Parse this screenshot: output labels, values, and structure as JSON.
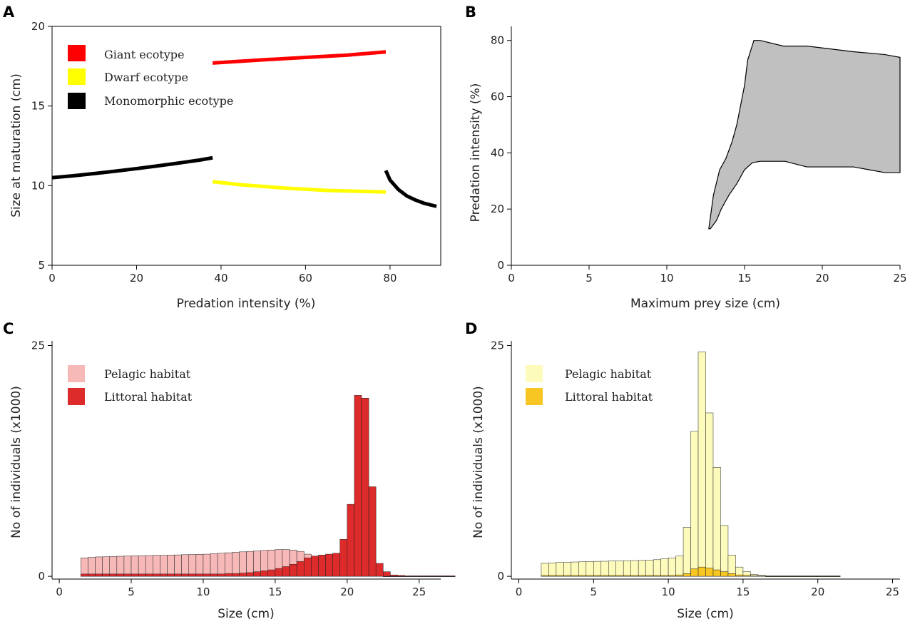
{
  "chart_data": [
    {
      "panel": "A",
      "type": "line",
      "xlabel": "Predation intensity (%)",
      "ylabel": "Size at maturation (cm)",
      "xlim": [
        0,
        92
      ],
      "ylim": [
        5,
        20
      ],
      "xticks": [
        0,
        20,
        40,
        60,
        80
      ],
      "yticks": [
        5,
        10,
        15,
        20
      ],
      "legend_position": "top-left",
      "series": [
        {
          "name": "Giant ecotype",
          "color": "#ff0000",
          "x": [
            38,
            50,
            60,
            70,
            79
          ],
          "y": [
            17.7,
            17.9,
            18.05,
            18.2,
            18.4
          ]
        },
        {
          "name": "Dwarf ecotype",
          "color": "#ffff00",
          "x": [
            38,
            45,
            55,
            65,
            79
          ],
          "y": [
            10.25,
            10.05,
            9.85,
            9.7,
            9.6
          ]
        },
        {
          "name": "Monomorphic ecotype",
          "color": "#000000",
          "segments": [
            {
              "x": [
                0,
                5,
                10,
                15,
                20,
                25,
                30,
                35,
                38
              ],
              "y": [
                10.5,
                10.62,
                10.76,
                10.91,
                11.07,
                11.24,
                11.42,
                11.61,
                11.75
              ]
            },
            {
              "x": [
                79,
                80,
                82,
                84,
                86,
                88,
                91
              ],
              "y": [
                10.95,
                10.35,
                9.75,
                9.35,
                9.1,
                8.9,
                8.7
              ]
            }
          ]
        }
      ]
    },
    {
      "panel": "B",
      "type": "area",
      "xlabel": "Maximum prey size (cm)",
      "ylabel": "Predation intensity (%)",
      "xlim": [
        0,
        25
      ],
      "ylim": [
        0,
        85
      ],
      "xticks": [
        0,
        5,
        10,
        15,
        20,
        25
      ],
      "yticks": [
        0,
        20,
        40,
        60,
        80
      ],
      "fill": "#c0c0c0",
      "polygon_x": [
        12.8,
        13.2,
        13.5,
        14.0,
        14.5,
        15.0,
        15.5,
        16.0,
        16.6,
        17.0,
        17.6,
        19.0,
        22.0,
        23.0,
        24.0,
        25.0,
        25.0,
        24.0,
        22.0,
        19.0,
        17.5,
        16.0,
        15.6,
        15.2,
        15.0,
        14.5,
        14.2,
        13.8,
        13.4,
        13.0,
        12.7
      ],
      "polygon_y": [
        13,
        16,
        20,
        25,
        29,
        34,
        36.5,
        37,
        37,
        37,
        37,
        35,
        35,
        34,
        33,
        33,
        74,
        75,
        76,
        78,
        78,
        80,
        80,
        73,
        64,
        50,
        44,
        38,
        34,
        25,
        13
      ]
    },
    {
      "panel": "C",
      "type": "bar",
      "xlabel": "Size (cm)",
      "ylabel": "No of individuals  (x1000)",
      "xlim": [
        -0.5,
        26.5
      ],
      "ylim": [
        -0.3,
        25.5
      ],
      "xticks": [
        0,
        5,
        10,
        15,
        20,
        25
      ],
      "yticks": [
        0,
        25
      ],
      "bin_width": 0.5,
      "bin_start": 1.5,
      "legend_position": "top-left",
      "series": [
        {
          "name": "Pelagic habitat",
          "color": "#f7b8b8",
          "values": [
            2.0,
            2.05,
            2.1,
            2.12,
            2.15,
            2.17,
            2.2,
            2.22,
            2.24,
            2.25,
            2.27,
            2.28,
            2.3,
            2.32,
            2.34,
            2.36,
            2.38,
            2.4,
            2.45,
            2.5,
            2.55,
            2.6,
            2.65,
            2.7,
            2.75,
            2.8,
            2.85,
            2.9,
            2.9,
            2.85,
            2.7,
            2.4,
            2.0,
            1.5,
            1.0,
            0.7,
            0.5,
            0.4,
            0.3,
            0.2,
            0.1,
            0.05,
            0,
            0,
            0,
            0,
            0,
            0,
            0,
            0,
            0,
            0
          ]
        },
        {
          "name": "Littoral habitat",
          "color": "#dd2a2a",
          "values": [
            0.25,
            0.25,
            0.25,
            0.25,
            0.25,
            0.25,
            0.25,
            0.25,
            0.25,
            0.25,
            0.25,
            0.25,
            0.25,
            0.25,
            0.25,
            0.25,
            0.25,
            0.25,
            0.25,
            0.25,
            0.3,
            0.3,
            0.35,
            0.4,
            0.5,
            0.6,
            0.7,
            0.85,
            1.05,
            1.3,
            1.6,
            2.0,
            2.2,
            2.3,
            2.4,
            2.5,
            4.0,
            7.8,
            19.6,
            19.3,
            9.7,
            1.4,
            0.5,
            0.15,
            0.1,
            0.05,
            0.05,
            0.05,
            0.05,
            0.05,
            0.05,
            0.05
          ]
        }
      ]
    },
    {
      "panel": "D",
      "type": "bar",
      "xlabel": "Size (cm)",
      "ylabel": "No of individuals  (x1000)",
      "xlim": [
        -0.5,
        25.5
      ],
      "ylim": [
        -0.3,
        25.5
      ],
      "xticks": [
        0,
        5,
        10,
        15,
        20,
        25
      ],
      "yticks": [
        0,
        25
      ],
      "bin_width": 0.5,
      "bin_start": 1.5,
      "legend_position": "top-left",
      "series": [
        {
          "name": "Pelagic habitat",
          "color": "#fdfbbc",
          "values": [
            1.4,
            1.45,
            1.5,
            1.52,
            1.55,
            1.57,
            1.6,
            1.62,
            1.63,
            1.65,
            1.66,
            1.68,
            1.7,
            1.72,
            1.75,
            1.8,
            1.9,
            2.0,
            2.2,
            5.3,
            15.7,
            24.3,
            17.7,
            11.8,
            5.5,
            2.3,
            1.0,
            0.5,
            0.2,
            0.1,
            0.05,
            0.05,
            0.05,
            0.05,
            0.05,
            0.05,
            0.05,
            0.05,
            0.05,
            0.05
          ]
        },
        {
          "name": "Littoral habitat",
          "color": "#f7c623",
          "values": [
            0.1,
            0.1,
            0.1,
            0.1,
            0.1,
            0.1,
            0.1,
            0.1,
            0.1,
            0.1,
            0.1,
            0.1,
            0.1,
            0.1,
            0.1,
            0.1,
            0.1,
            0.1,
            0.15,
            0.3,
            0.8,
            1.0,
            0.9,
            0.7,
            0.5,
            0.3,
            0.15,
            0.1,
            0.05,
            0.05,
            0,
            0,
            0,
            0,
            0,
            0,
            0,
            0,
            0,
            0
          ]
        }
      ]
    }
  ]
}
